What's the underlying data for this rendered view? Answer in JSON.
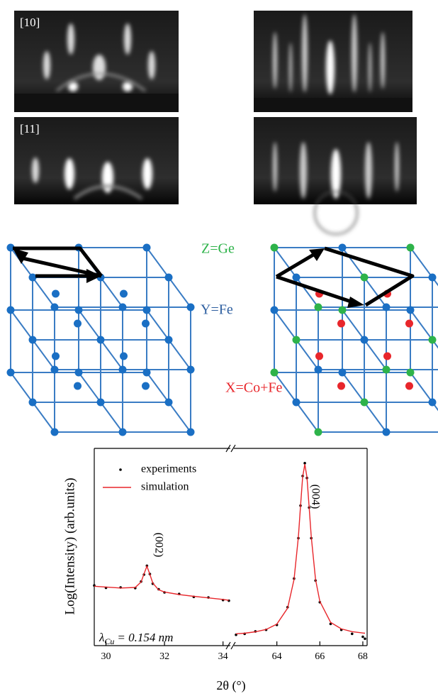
{
  "figure": {
    "rheed_labels": [
      "[10]",
      "[11]"
    ],
    "lattice_labels": {
      "z": "Z=Ge",
      "y": "Y=Fe",
      "x": "X=Co+Fe"
    }
  },
  "chart_data": [
    {
      "type": "line",
      "x_label": "2θ (°)",
      "y_label": "Log(Intensity) (arb.units)",
      "annotation": {
        "symbol": "λ",
        "subscript": "Cu",
        "text": "= 0.154 nm"
      },
      "peak_label": "(002)",
      "x": [
        29.6,
        30,
        30.5,
        31,
        31.2,
        31.3,
        31.4,
        31.5,
        31.6,
        31.8,
        32,
        32.5,
        33,
        33.5,
        34,
        34.2
      ],
      "series": [
        {
          "name": "experiments",
          "color": "#000000",
          "values": [
            3.05,
            2.93,
            2.95,
            2.92,
            3.25,
            3.6,
            4.05,
            3.63,
            3.14,
            2.86,
            2.7,
            2.62,
            2.47,
            2.44,
            2.31,
            2.28
          ]
        },
        {
          "name": "simulation",
          "color": "#e8262b",
          "values": [
            3.01,
            2.97,
            2.92,
            2.95,
            3.23,
            3.64,
            4.03,
            3.61,
            3.17,
            2.83,
            2.72,
            2.59,
            2.5,
            2.42,
            2.34,
            2.3
          ]
        }
      ],
      "xlim": [
        29.6,
        34.25
      ],
      "xticks": [
        30,
        32,
        34
      ],
      "ylim": [
        0,
        10
      ]
    },
    {
      "type": "line",
      "peak_label": "(004)",
      "x": [
        62.1,
        62.5,
        63,
        63.5,
        64,
        64.5,
        64.8,
        65,
        65.1,
        65.2,
        65.3,
        65.4,
        65.5,
        65.6,
        65.8,
        66,
        66.5,
        67,
        67.5,
        68,
        68.1
      ],
      "series": [
        {
          "color": "#000000",
          "values": [
            0.55,
            0.6,
            0.72,
            0.8,
            1.05,
            1.95,
            3.4,
            5.45,
            7.1,
            8.6,
            9.25,
            8.5,
            7.0,
            5.45,
            3.3,
            2.2,
            1.1,
            0.8,
            0.6,
            0.45,
            0.35
          ]
        },
        {
          "color": "#e8262b",
          "values": [
            0.6,
            0.63,
            0.7,
            0.82,
            1.09,
            1.9,
            3.36,
            5.51,
            7.06,
            8.54,
            9.2,
            8.54,
            7.06,
            5.51,
            3.36,
            2.24,
            1.18,
            0.85,
            0.71,
            0.64,
            0.63
          ]
        }
      ],
      "xlim": [
        62,
        68.2
      ],
      "xticks": [
        64,
        66,
        68
      ],
      "ylim": [
        0,
        10
      ]
    }
  ]
}
